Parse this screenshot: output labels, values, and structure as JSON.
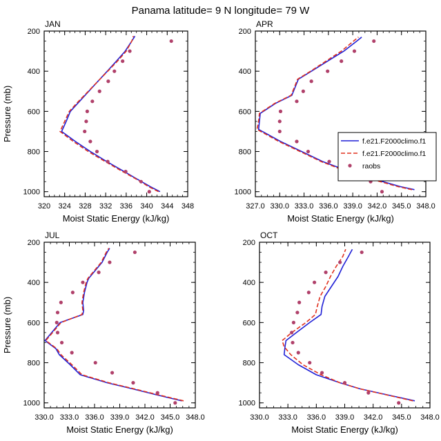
{
  "title": "Panama  latitude= 9 N longitude= 79 W",
  "colors": {
    "model1": "#1f1fd6",
    "model2": "#e0301e",
    "raobs": "#b0406a"
  },
  "legend": {
    "entries": [
      {
        "label": "f.e21.F2000climo.f1",
        "style": "solid-blue"
      },
      {
        "label": "f.e21.F2000climo.f1",
        "style": "dashed-red"
      },
      {
        "label": "raobs",
        "style": "marker"
      }
    ]
  },
  "chart_data": [
    {
      "type": "line",
      "panel": "JAN",
      "xlabel": "Moist Static Energy (kJ/kg)",
      "ylabel": "Pressure (mb)",
      "xlim": [
        320,
        348
      ],
      "xticks": [
        320,
        324,
        328,
        332,
        336,
        340,
        344,
        348
      ],
      "xtick_labels": [
        "320",
        "324",
        "328",
        "332",
        "336",
        "340",
        "344",
        "348"
      ],
      "ylim": [
        200,
        1025
      ],
      "yticks": [
        200,
        400,
        600,
        800,
        1000
      ],
      "y_inverted": true,
      "pressure": [
        1000,
        975,
        950,
        925,
        900,
        850,
        800,
        750,
        700,
        650,
        600,
        550,
        500,
        450,
        400,
        350,
        300,
        250,
        225
      ],
      "series": [
        {
          "name": "f.e21.F2000climo.f1",
          "x": [
            342.6,
            340.7,
            339.0,
            337.3,
            335.6,
            332.2,
            329.0,
            326.1,
            323.4,
            324.3,
            325.1,
            326.9,
            328.7,
            330.5,
            332.3,
            334.1,
            335.8,
            337.1,
            337.7
          ]
        },
        {
          "name": "f.e21.F2000climo.f1",
          "x": [
            342.3,
            340.4,
            338.8,
            337.1,
            335.3,
            331.9,
            328.6,
            325.7,
            323.1,
            324.0,
            324.9,
            326.7,
            328.6,
            330.5,
            332.4,
            334.3,
            336.0,
            337.1,
            337.4
          ]
        }
      ],
      "raobs": {
        "name": "raobs",
        "p": [
          1000,
          950,
          900,
          850,
          800,
          750,
          700,
          650,
          600,
          550,
          500,
          450,
          400,
          350,
          300,
          250
        ],
        "x": [
          340.5,
          338.9,
          335.9,
          332.4,
          330.3,
          329.0,
          327.9,
          328.2,
          328.4,
          329.4,
          330.8,
          332.5,
          333.7,
          335.3,
          336.7,
          344.8
        ]
      }
    },
    {
      "type": "line",
      "panel": "APR",
      "xlabel": "Moist Static Energy (kJ/kg)",
      "ylabel": "",
      "xlim": [
        327,
        348
      ],
      "xticks": [
        327,
        330,
        333,
        336,
        339,
        342,
        345,
        348
      ],
      "xtick_labels": [
        "327.0",
        "330.0",
        "333.0",
        "336.0",
        "339.0",
        "342.0",
        "345.0",
        "348.0"
      ],
      "ylim": [
        200,
        1025
      ],
      "yticks": [
        200,
        400,
        600,
        800,
        1000
      ],
      "y_inverted": true,
      "pressure": [
        990,
        975,
        950,
        925,
        900,
        850,
        800,
        750,
        690,
        650,
        610,
        560,
        520,
        480,
        440,
        400,
        350,
        300,
        250,
        230
      ],
      "series": [
        {
          "name": "f.e21.F2000climo.f1",
          "x": [
            346.6,
            344.9,
            342.7,
            340.4,
            338.6,
            335.3,
            332.7,
            330.1,
            327.4,
            327.5,
            327.6,
            329.5,
            331.5,
            331.9,
            332.3,
            333.9,
            335.9,
            337.9,
            339.5,
            340.1
          ]
        },
        {
          "name": "f.e21.F2000climo.f1",
          "x": [
            346.3,
            344.6,
            342.4,
            340.1,
            338.3,
            335.1,
            332.5,
            329.9,
            327.2,
            327.4,
            327.5,
            329.4,
            331.4,
            331.8,
            332.2,
            333.8,
            335.7,
            337.6,
            339.1,
            339.7
          ]
        }
      ],
      "raobs": {
        "name": "raobs",
        "p": [
          1000,
          950,
          900,
          850,
          800,
          750,
          700,
          650,
          600,
          550,
          500,
          450,
          400,
          350,
          300,
          250
        ],
        "x": [
          342.6,
          341.2,
          338.9,
          336.1,
          333.5,
          332.1,
          330.0,
          330.0,
          330.1,
          332.1,
          332.9,
          333.9,
          335.9,
          337.6,
          339.2,
          341.6
        ]
      }
    },
    {
      "type": "line",
      "panel": "JUL",
      "xlabel": "Moist Static Energy (kJ/kg)",
      "ylabel": "Pressure (mb)",
      "xlim": [
        330,
        348
      ],
      "xticks": [
        330,
        333,
        336,
        339,
        342,
        345,
        348
      ],
      "xtick_labels": [
        "330.0",
        "333.0",
        "336.0",
        "339.0",
        "342.0",
        "345.0",
        "348.0"
      ],
      "ylim": [
        200,
        1025
      ],
      "yticks": [
        200,
        400,
        600,
        800,
        1000
      ],
      "y_inverted": true,
      "pressure": [
        990,
        960,
        930,
        900,
        860,
        810,
        760,
        730,
        690,
        650,
        600,
        560,
        540,
        500,
        450,
        400,
        380,
        350,
        300,
        250,
        230
      ],
      "series": [
        {
          "name": "f.e21.F2000climo.f1",
          "x": [
            346.4,
            343.4,
            340.5,
            337.5,
            334.3,
            333.1,
            331.8,
            331.4,
            330.1,
            330.9,
            331.9,
            334.6,
            334.7,
            334.6,
            334.8,
            335.1,
            335.3,
            335.9,
            336.9,
            337.5,
            337.8
          ]
        },
        {
          "name": "f.e21.F2000climo.f1",
          "x": [
            346.6,
            343.6,
            340.7,
            337.7,
            334.5,
            333.3,
            332.0,
            331.5,
            330.2,
            331.0,
            332.0,
            334.5,
            334.6,
            334.5,
            334.7,
            335.0,
            335.2,
            335.8,
            336.8,
            337.4,
            337.7
          ]
        }
      ],
      "raobs": {
        "name": "raobs",
        "p": [
          1000,
          950,
          900,
          850,
          800,
          750,
          700,
          650,
          600,
          550,
          500,
          450,
          400,
          350,
          300,
          250
        ],
        "x": [
          345.6,
          343.5,
          340.6,
          338.1,
          336.1,
          333.3,
          332.1,
          331.6,
          331.5,
          331.6,
          332.0,
          333.4,
          334.6,
          336.5,
          337.8,
          340.8
        ]
      }
    },
    {
      "type": "line",
      "panel": "OCT",
      "xlabel": "Moist Static Energy (kJ/kg)",
      "ylabel": "",
      "xlim": [
        330,
        348
      ],
      "xticks": [
        330,
        333,
        336,
        339,
        342,
        345,
        348
      ],
      "xtick_labels": [
        "330.0",
        "333.0",
        "336.0",
        "339.0",
        "342.0",
        "345.0",
        "348.0"
      ],
      "ylim": [
        200,
        1025
      ],
      "yticks": [
        200,
        400,
        600,
        800,
        1000
      ],
      "y_inverted": true,
      "pressure": [
        990,
        960,
        930,
        900,
        860,
        810,
        760,
        720,
        690,
        650,
        600,
        560,
        520,
        470,
        420,
        370,
        320,
        270,
        235
      ],
      "series": [
        {
          "name": "f.e21.F2000climo.f1",
          "x": [
            346.4,
            343.5,
            340.6,
            338.5,
            336.0,
            334.1,
            332.6,
            332.7,
            332.8,
            333.9,
            335.3,
            336.5,
            336.6,
            336.9,
            337.6,
            338.3,
            338.8,
            339.4,
            339.8
          ]
        },
        {
          "name": "f.e21.F2000climo.f1",
          "x": [
            346.2,
            343.4,
            340.6,
            338.5,
            336.5,
            334.6,
            333.3,
            332.6,
            332.4,
            333.4,
            334.9,
            335.9,
            336.1,
            336.4,
            337.0,
            337.5,
            338.1,
            338.8,
            339.1
          ]
        }
      ],
      "raobs": {
        "name": "raobs",
        "p": [
          1000,
          950,
          900,
          850,
          800,
          750,
          700,
          650,
          600,
          550,
          500,
          450,
          400,
          350,
          300,
          250
        ],
        "x": [
          344.7,
          341.5,
          339.0,
          336.6,
          335.3,
          334.1,
          333.5,
          333.4,
          333.6,
          334.0,
          334.2,
          335.2,
          335.8,
          337.0,
          338.5,
          340.8
        ]
      }
    }
  ]
}
